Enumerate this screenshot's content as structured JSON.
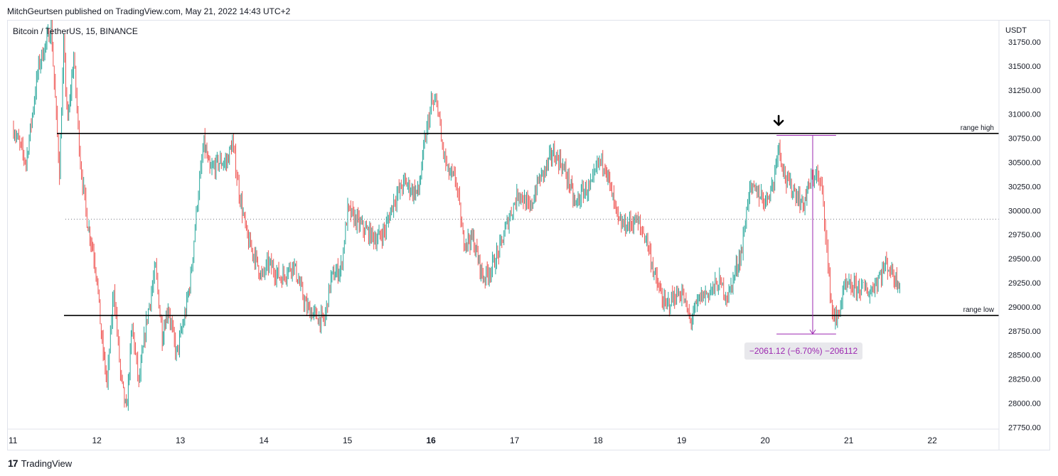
{
  "header": {
    "published": "MitchGeurtsen published on TradingView.com, May 21, 2022 14:43 UTC+2",
    "symbol": "Bitcoin / TetherUS, 15, BINANCE"
  },
  "footer": {
    "brand": "TradingView"
  },
  "colors": {
    "up": "#26a69a",
    "down": "#ef5350",
    "measure": "#9c27b0",
    "line": "#000000"
  },
  "chart_data": {
    "type": "candlestick",
    "currency": "USDT",
    "y_ticks": [
      "31750.00",
      "31500.00",
      "31250.00",
      "31000.00",
      "30750.00",
      "30500.00",
      "30250.00",
      "30000.00",
      "29750.00",
      "29500.00",
      "29250.00",
      "29000.00",
      "28750.00",
      "28500.00",
      "28250.00",
      "28000.00",
      "27750.00"
    ],
    "ylim": [
      27720,
      32000
    ],
    "x_ticks": [
      "11",
      "12",
      "13",
      "14",
      "15",
      "16",
      "17",
      "18",
      "19",
      "20",
      "21",
      "22"
    ],
    "x_bold": "16",
    "dotted_level": 29910,
    "levels": [
      {
        "name": "range high",
        "price": 30800
      },
      {
        "name": "range low",
        "price": 28910
      }
    ],
    "measure": {
      "label": "−2061.12 (−6.70%) −206112",
      "from_price": 30780,
      "to_price": 28718,
      "from_day": 20.15,
      "to_day": 20.82
    },
    "arrow_marker_day": 20.15,
    "price_path": [
      [
        11.0,
        30850
      ],
      [
        11.15,
        30500
      ],
      [
        11.3,
        31500
      ],
      [
        11.45,
        31900
      ],
      [
        11.55,
        30400
      ],
      [
        11.6,
        31700
      ],
      [
        11.65,
        30900
      ],
      [
        11.72,
        31600
      ],
      [
        11.8,
        30500
      ],
      [
        11.88,
        29900
      ],
      [
        11.95,
        29600
      ],
      [
        12.0,
        29300
      ],
      [
        12.05,
        28700
      ],
      [
        12.12,
        28200
      ],
      [
        12.2,
        29200
      ],
      [
        12.28,
        28300
      ],
      [
        12.35,
        27900
      ],
      [
        12.42,
        28800
      ],
      [
        12.5,
        28200
      ],
      [
        12.6,
        28900
      ],
      [
        12.7,
        29400
      ],
      [
        12.78,
        28700
      ],
      [
        12.85,
        29000
      ],
      [
        12.95,
        28500
      ],
      [
        13.05,
        28900
      ],
      [
        13.12,
        29300
      ],
      [
        13.2,
        30100
      ],
      [
        13.28,
        30700
      ],
      [
        13.35,
        30400
      ],
      [
        13.45,
        30500
      ],
      [
        13.55,
        30500
      ],
      [
        13.62,
        30700
      ],
      [
        13.7,
        30200
      ],
      [
        13.8,
        29700
      ],
      [
        13.9,
        29500
      ],
      [
        13.97,
        29300
      ],
      [
        14.05,
        29450
      ],
      [
        14.2,
        29300
      ],
      [
        14.35,
        29450
      ],
      [
        14.5,
        29000
      ],
      [
        14.62,
        28900
      ],
      [
        14.72,
        28850
      ],
      [
        14.8,
        29300
      ],
      [
        14.92,
        29400
      ],
      [
        15.0,
        30000
      ],
      [
        15.1,
        29900
      ],
      [
        15.2,
        29800
      ],
      [
        15.35,
        29700
      ],
      [
        15.45,
        29800
      ],
      [
        15.55,
        30100
      ],
      [
        15.68,
        30300
      ],
      [
        15.78,
        30200
      ],
      [
        15.85,
        30200
      ],
      [
        15.92,
        30700
      ],
      [
        16.0,
        31100
      ],
      [
        16.08,
        31100
      ],
      [
        16.12,
        30700
      ],
      [
        16.2,
        30400
      ],
      [
        16.3,
        30300
      ],
      [
        16.38,
        29700
      ],
      [
        16.5,
        29700
      ],
      [
        16.62,
        29300
      ],
      [
        16.72,
        29400
      ],
      [
        16.82,
        29600
      ],
      [
        16.92,
        29900
      ],
      [
        17.05,
        30200
      ],
      [
        17.18,
        30000
      ],
      [
        17.28,
        30300
      ],
      [
        17.38,
        30450
      ],
      [
        17.45,
        30600
      ],
      [
        17.55,
        30500
      ],
      [
        17.65,
        30300
      ],
      [
        17.72,
        30050
      ],
      [
        17.82,
        30200
      ],
      [
        17.92,
        30250
      ],
      [
        18.0,
        30500
      ],
      [
        18.08,
        30500
      ],
      [
        18.15,
        30200
      ],
      [
        18.25,
        29850
      ],
      [
        18.35,
        29850
      ],
      [
        18.45,
        29900
      ],
      [
        18.58,
        29700
      ],
      [
        18.68,
        29300
      ],
      [
        18.8,
        29000
      ],
      [
        18.9,
        29100
      ],
      [
        19.0,
        29150
      ],
      [
        19.1,
        28850
      ],
      [
        19.22,
        29100
      ],
      [
        19.32,
        29150
      ],
      [
        19.45,
        29250
      ],
      [
        19.55,
        29100
      ],
      [
        19.65,
        29400
      ],
      [
        19.72,
        29600
      ],
      [
        19.8,
        30200
      ],
      [
        19.9,
        30200
      ],
      [
        20.0,
        30100
      ],
      [
        20.1,
        30300
      ],
      [
        20.15,
        30700
      ],
      [
        20.25,
        30300
      ],
      [
        20.35,
        30200
      ],
      [
        20.45,
        30050
      ],
      [
        20.52,
        30250
      ],
      [
        20.6,
        30400
      ],
      [
        20.68,
        30200
      ],
      [
        20.72,
        29800
      ],
      [
        20.75,
        29400
      ],
      [
        20.8,
        28950
      ],
      [
        20.85,
        28850
      ],
      [
        20.95,
        29200
      ],
      [
        21.05,
        29200
      ],
      [
        21.15,
        29200
      ],
      [
        21.25,
        29150
      ],
      [
        21.35,
        29300
      ],
      [
        21.45,
        29450
      ],
      [
        21.55,
        29300
      ],
      [
        21.62,
        29250
      ]
    ]
  }
}
